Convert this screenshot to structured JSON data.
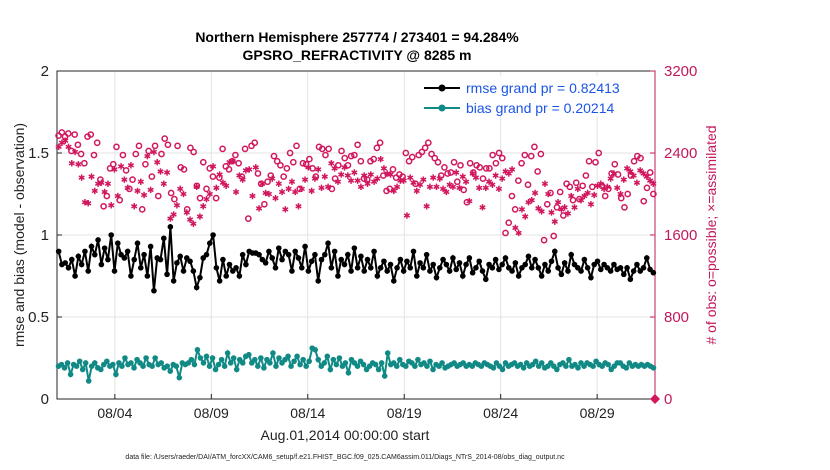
{
  "chart_data": {
    "type": "line",
    "title_line1": "Northern Hemisphere 257774 / 273401 = 94.284%",
    "title_line2": "GPSRO_REFRACTIVITY @ 8285 m",
    "xlabel": "Aug.01,2014 00:00:00 start",
    "ylabel_left": "rmse and bias (model - observation)",
    "ylabel_right": "# of obs: o=possible; ×=assimilated",
    "footer": "data file: /Users/raeder/DAI/ATM_forcXX/CAM6_setup/f.e21.FHIST_BGC.f09_025.CAM6assim.011/Diags_NTrS_2014-08/obs_diag_output.nc",
    "x_ticks": [
      "08/04",
      "08/09",
      "08/14",
      "08/19",
      "08/24",
      "08/29"
    ],
    "x_tick_days": [
      4,
      9,
      14,
      19,
      24,
      29
    ],
    "x_range_days": [
      1,
      32
    ],
    "y_left_ticks": [
      "0",
      "0.5",
      "1",
      "1.5",
      "2"
    ],
    "y_left_range": [
      0,
      2
    ],
    "y_right_ticks": [
      "0",
      "800",
      "1600",
      "2400",
      "3200"
    ],
    "y_right_range": [
      0,
      3200
    ],
    "grid": true,
    "legend_position": "top-right",
    "colors": {
      "rmse": "#000000",
      "bias": "#118a86",
      "obs": "#d1175e",
      "axis_right": "#c2185b",
      "legend_text": "#1a55e6"
    },
    "series": [
      {
        "name": "rmse grand pr = 0.82413",
        "key": "rmse",
        "values": [
          0.9,
          0.82,
          0.83,
          0.8,
          0.85,
          0.75,
          0.87,
          0.82,
          0.9,
          0.78,
          0.93,
          0.88,
          0.97,
          0.82,
          0.92,
          0.85,
          1.0,
          0.78,
          0.95,
          0.88,
          0.86,
          0.9,
          0.75,
          0.85,
          0.95,
          0.8,
          0.88,
          0.75,
          0.93,
          0.66,
          0.86,
          0.85,
          0.98,
          0.76,
          1.05,
          0.72,
          0.83,
          0.87,
          0.78,
          0.86,
          0.84,
          0.78,
          0.68,
          0.74,
          0.86,
          0.88,
          0.95,
          1.0,
          0.8,
          0.72,
          0.85,
          0.75,
          0.82,
          0.78,
          0.8,
          0.75,
          0.88,
          0.82,
          0.9,
          0.89,
          0.89,
          0.88,
          0.85,
          0.83,
          0.9,
          0.86,
          0.8,
          0.92,
          0.85,
          0.9,
          0.88,
          0.78,
          0.9,
          0.86,
          0.8,
          0.93,
          0.78,
          0.84,
          0.88,
          0.72,
          0.85,
          0.88,
          0.95,
          0.8,
          0.9,
          0.75,
          0.85,
          0.82,
          0.88,
          0.78,
          0.92,
          0.8,
          0.87,
          0.78,
          0.85,
          0.8,
          0.9,
          0.75,
          0.8,
          0.84,
          0.78,
          0.82,
          0.72,
          0.8,
          0.85,
          0.78,
          0.84,
          0.8,
          0.9,
          0.75,
          0.83,
          0.8,
          0.88,
          0.78,
          0.82,
          0.74,
          0.8,
          0.85,
          0.82,
          0.78,
          0.86,
          0.79,
          0.83,
          0.75,
          0.82,
          0.86,
          0.77,
          0.8,
          0.84,
          0.78,
          0.73,
          0.82,
          0.8,
          0.85,
          0.79,
          0.82,
          0.86,
          0.8,
          0.78,
          0.83,
          0.75,
          0.8,
          0.82,
          0.87,
          0.8,
          0.85,
          0.8,
          0.75,
          0.82,
          0.78,
          0.84,
          0.9,
          0.8,
          0.76,
          0.83,
          0.78,
          0.88,
          0.82,
          0.8,
          0.78,
          0.85,
          0.8,
          0.74,
          0.82,
          0.84,
          0.79,
          0.82,
          0.8,
          0.78,
          0.82,
          0.79,
          0.8,
          0.76,
          0.8,
          0.73,
          0.78,
          0.82,
          0.78,
          0.8,
          0.86,
          0.79,
          0.77
        ]
      },
      {
        "name": "bias grand pr = 0.20214",
        "key": "bias",
        "values": [
          0.2,
          0.21,
          0.19,
          0.22,
          0.15,
          0.21,
          0.2,
          0.23,
          0.18,
          0.22,
          0.11,
          0.2,
          0.22,
          0.19,
          0.18,
          0.21,
          0.23,
          0.2,
          0.21,
          0.15,
          0.22,
          0.2,
          0.25,
          0.21,
          0.22,
          0.19,
          0.24,
          0.22,
          0.2,
          0.25,
          0.21,
          0.2,
          0.25,
          0.21,
          0.22,
          0.19,
          0.2,
          0.17,
          0.21,
          0.2,
          0.13,
          0.22,
          0.21,
          0.22,
          0.24,
          0.21,
          0.3,
          0.25,
          0.22,
          0.26,
          0.2,
          0.25,
          0.18,
          0.21,
          0.24,
          0.2,
          0.28,
          0.22,
          0.25,
          0.18,
          0.24,
          0.22,
          0.26,
          0.27,
          0.22,
          0.24,
          0.2,
          0.25,
          0.19,
          0.24,
          0.22,
          0.28,
          0.2,
          0.25,
          0.22,
          0.24,
          0.26,
          0.2,
          0.23,
          0.26,
          0.21,
          0.24,
          0.2,
          0.23,
          0.31,
          0.3,
          0.24,
          0.2,
          0.22,
          0.26,
          0.18,
          0.24,
          0.21,
          0.25,
          0.2,
          0.22,
          0.16,
          0.24,
          0.22,
          0.2,
          0.23,
          0.21,
          0.18,
          0.2,
          0.22,
          0.21,
          0.18,
          0.22,
          0.14,
          0.28,
          0.21,
          0.22,
          0.2,
          0.24,
          0.21,
          0.2,
          0.23,
          0.22,
          0.2,
          0.24,
          0.21,
          0.22,
          0.2,
          0.23,
          0.18,
          0.21,
          0.2,
          0.22,
          0.19,
          0.2,
          0.21,
          0.22,
          0.2,
          0.21,
          0.22,
          0.2,
          0.21,
          0.2,
          0.22,
          0.21,
          0.2,
          0.22,
          0.21,
          0.2,
          0.19,
          0.22,
          0.2,
          0.18,
          0.22,
          0.2,
          0.21,
          0.22,
          0.2,
          0.21,
          0.19,
          0.22,
          0.2,
          0.21,
          0.23,
          0.2,
          0.22,
          0.19,
          0.2,
          0.22,
          0.2,
          0.18,
          0.21,
          0.22,
          0.2,
          0.24,
          0.2,
          0.21,
          0.19,
          0.22,
          0.2,
          0.22,
          0.21,
          0.2,
          0.23,
          0.21,
          0.2,
          0.22,
          0.21,
          0.18,
          0.2,
          0.22,
          0.22,
          0.2,
          0.19,
          0.22,
          0.2,
          0.21,
          0.2,
          0.21,
          0.2,
          0.21,
          0.2,
          0.19
        ]
      },
      {
        "name": "possible",
        "key": "possible",
        "axis": "right",
        "marker": "o",
        "values": [
          2570,
          2600,
          2560,
          2590,
          2420,
          2580,
          2480,
          2390,
          2300,
          2560,
          2580,
          2380,
          2500,
          2140,
          1880,
          1980,
          2250,
          2290,
          2460,
          1940,
          2380,
          2230,
          2050,
          2140,
          2390,
          2470,
          1850,
          2290,
          2420,
          2170,
          2470,
          1980,
          2390,
          2540,
          2480,
          2010,
          1950,
          2470,
          2260,
          2240,
          1850,
          2450,
          2410,
          2080,
          1960,
          2310,
          2050,
          2250,
          2170,
          1960,
          2160,
          2440,
          2270,
          2240,
          2320,
          2380,
          2300,
          2170,
          2440,
          1760,
          2470,
          2500,
          2200,
          2100,
          1900,
          2120,
          2180,
          2370,
          2320,
          2280,
          2170,
          2250,
          2400,
          2310,
          2470,
          2050,
          2300,
          2290,
          2340,
          2250,
          2170,
          2460,
          2440,
          2380,
          2440,
          2050,
          2150,
          2280,
          2420,
          2350,
          2280,
          2370,
          2380,
          2480,
          2320,
          2150,
          2140,
          2320,
          2340,
          2450,
          2500,
          2180,
          2030,
          2050,
          2240,
          2160,
          2190,
          2170,
          2400,
          2320,
          2360,
          2100,
          2380,
          2410,
          2450,
          2500,
          2390,
          2350,
          2310,
          2180,
          2260,
          2200,
          2210,
          2310,
          2120,
          2280,
          2040,
          1920,
          2300,
          2210,
          2280,
          2260,
          2150,
          2250,
          2250,
          2380,
          2300,
          2400,
          2350,
          1620,
          1720,
          1980,
          1850,
          2130,
          2300,
          2380,
          2090,
          2370,
          2460,
          2220,
          2390,
          1550,
          1900,
          2010,
          1590,
          1870,
          2020,
          1790,
          2100,
          2070,
          1940,
          2110,
          1950,
          2080,
          2180,
          2320,
          2070,
          2310,
          2400,
          2080,
          1980,
          2050,
          2200,
          2290,
          2190,
          1960,
          1870,
          2000,
          2180,
          2320,
          2370,
          2350,
          1930,
          2060,
          2210,
          2000
        ]
      },
      {
        "name": "assimilated",
        "key": "assimilated",
        "axis": "right",
        "marker": "*",
        "values": [
          2460,
          2500,
          2520,
          2460,
          2300,
          2410,
          2290,
          2160,
          1920,
          1910,
          2170,
          2030,
          2100,
          2110,
          2020,
          2100,
          1890,
          2240,
          1980,
          2270,
          2140,
          2060,
          2280,
          1880,
          2030,
          2120,
          1990,
          2370,
          2040,
          2410,
          2310,
          2220,
          2100,
          2210,
          1760,
          1800,
          1890,
          2050,
          2000,
          1820,
          1750,
          1710,
          2070,
          1780,
          1880,
          1950,
          2000,
          2270,
          2060,
          2190,
          2110,
          2080,
          2310,
          2320,
          2020,
          2180,
          2140,
          2230,
          2240,
          1980,
          2260,
          1860,
          2100,
          2010,
          2000,
          2150,
          1960,
          2100,
          2020,
          1850,
          2050,
          2120,
          2020,
          1880,
          2050,
          2140,
          2260,
          2030,
          2150,
          2240,
          2060,
          2170,
          2070,
          2300,
          2250,
          2120,
          2190,
          2260,
          2180,
          2130,
          2210,
          2130,
          2070,
          2180,
          2100,
          2190,
          2120,
          2150,
          2340,
          2250,
          2200,
          2190,
          2030,
          2070,
          2130,
          2130,
          1790,
          2160,
          2110,
          2030,
          2090,
          2140,
          1880,
          2070,
          2160,
          2070,
          2150,
          2050,
          2020,
          2090,
          2070,
          2210,
          2060,
          2170,
          2120,
          1930,
          2200,
          2160,
          2060,
          1870,
          2060,
          2120,
          2090,
          2180,
          2050,
          2150,
          2220,
          2200,
          2240,
          1670,
          1620,
          1850,
          1780,
          1920,
          1940,
          2010,
          1860,
          1830,
          2100,
          2000,
          1820,
          1730,
          1920,
          1850,
          1870,
          1810,
          1980,
          1870,
          2050,
          1940,
          1980,
          2010,
          1900,
          1990,
          2080,
          2100,
          2050,
          2070,
          2150,
          2200,
          2060,
          2000,
          2140,
          2250,
          2220,
          2180,
          2110,
          2230,
          2200,
          2170,
          2130,
          2100
        ]
      }
    ]
  }
}
